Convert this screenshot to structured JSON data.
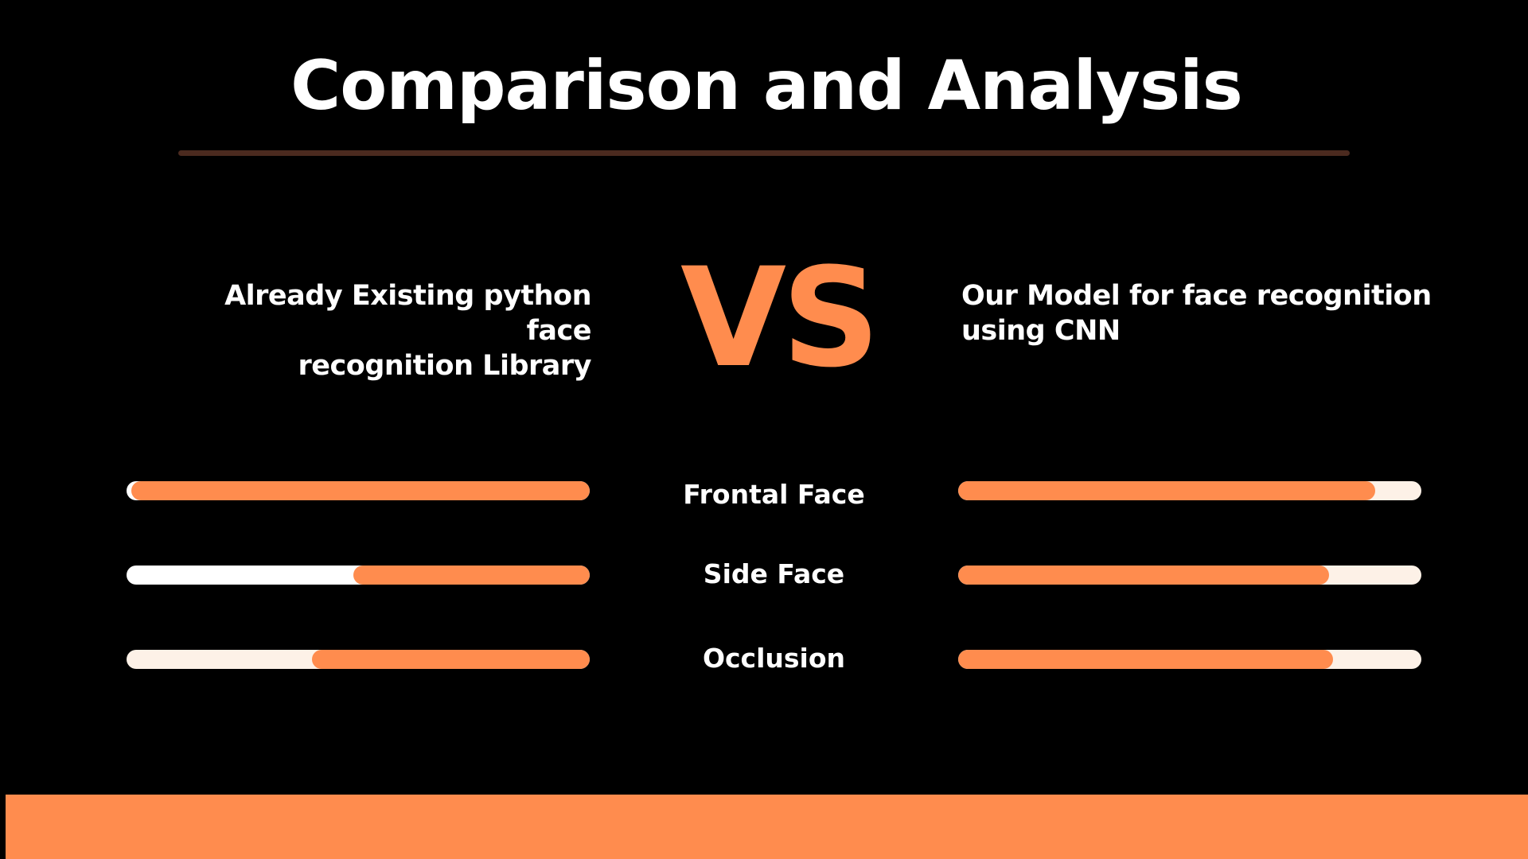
{
  "title": "Comparison and Analysis",
  "vs_label": "VS",
  "left_heading": {
    "line1": "Already Existing python face",
    "line2": "recognition Library"
  },
  "right_heading": {
    "line1": "Our Model for face recognition",
    "line2": "using CNN"
  },
  "colors": {
    "accent": "#ff8c4e",
    "track_white": "#ffffff",
    "track_cream": "#fdf1e7",
    "title_rule": "#4b2a1f",
    "background": "#000000"
  },
  "comparisons": [
    {
      "label": "Frontal Face",
      "left_fill": 0.99,
      "right_fill": 0.9,
      "left_track": "#ffffff",
      "right_track": "#fdf1e7"
    },
    {
      "label": "Side Face",
      "left_fill": 0.51,
      "right_fill": 0.8,
      "left_track": "#ffffff",
      "right_track": "#fdf1e7"
    },
    {
      "label": "Occlusion",
      "left_fill": 0.6,
      "right_fill": 0.81,
      "left_track": "#fdf1e7",
      "right_track": "#fdf1e7"
    }
  ]
}
